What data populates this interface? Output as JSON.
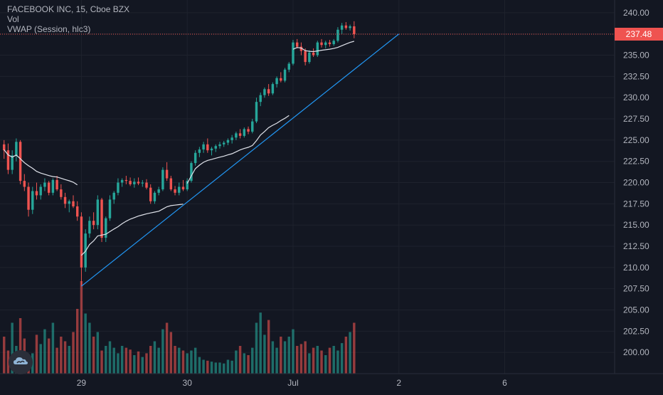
{
  "legend": {
    "symbol": "FACEBOOK INC, 15, Cboe BZX",
    "volume": "Vol",
    "vwap": "VWAP (Session, hlc3)"
  },
  "last_price_label": "237.48",
  "colors": {
    "background": "#131722",
    "up": "#26a69a",
    "down": "#ef5350",
    "vwap": "#e0e3eb",
    "trendline": "#2196f3",
    "grid": "#1e222d",
    "axis_text": "#b2b5be"
  },
  "chart_data": {
    "type": "candlestick",
    "title": "FACEBOOK INC, 15, Cboe BZX",
    "y_axis": {
      "ticks": [
        "240.00",
        "237.50",
        "235.00",
        "232.50",
        "230.00",
        "227.50",
        "225.00",
        "222.50",
        "220.00",
        "217.50",
        "215.00",
        "212.50",
        "210.00",
        "207.50",
        "205.00",
        "202.50",
        "200.00"
      ],
      "range": [
        197.5,
        241.5
      ]
    },
    "x_axis": {
      "ticks": [
        {
          "label": "29",
          "index": 19
        },
        {
          "label": "30",
          "index": 45
        },
        {
          "label": "Jul",
          "index": 71
        },
        {
          "label": "2",
          "index": 97
        },
        {
          "label": "6",
          "index": 123
        }
      ],
      "range": [
        -1,
        150
      ]
    },
    "last_price": 237.48,
    "ohlc": [
      [
        224.5,
        225.0,
        222.8,
        223.8
      ],
      [
        223.8,
        224.6,
        221.0,
        221.5
      ],
      [
        221.5,
        223.8,
        221.0,
        223.2
      ],
      [
        223.2,
        225.2,
        222.5,
        224.8
      ],
      [
        224.8,
        225.0,
        219.8,
        220.2
      ],
      [
        220.2,
        221.0,
        219.0,
        219.5
      ],
      [
        219.5,
        220.0,
        216.0,
        216.8
      ],
      [
        216.8,
        219.5,
        216.3,
        219.0
      ],
      [
        219.0,
        220.0,
        218.0,
        218.5
      ],
      [
        218.5,
        219.8,
        218.0,
        219.5
      ],
      [
        219.5,
        220.5,
        219.0,
        220.0
      ],
      [
        220.0,
        220.2,
        218.5,
        218.8
      ],
      [
        218.8,
        220.5,
        218.5,
        220.3
      ],
      [
        220.3,
        220.8,
        219.0,
        219.2
      ],
      [
        219.2,
        219.8,
        218.0,
        218.3
      ],
      [
        218.3,
        218.8,
        217.0,
        217.5
      ],
      [
        217.5,
        218.0,
        216.5,
        217.8
      ],
      [
        217.8,
        218.5,
        217.0,
        217.2
      ],
      [
        217.2,
        217.8,
        215.5,
        216.0
      ],
      [
        216.0,
        216.5,
        207.8,
        210.0
      ],
      [
        210.0,
        214.5,
        209.5,
        214.0
      ],
      [
        214.0,
        216.0,
        213.5,
        215.5
      ],
      [
        215.5,
        216.5,
        214.5,
        215.0
      ],
      [
        215.0,
        218.5,
        214.5,
        218.0
      ],
      [
        218.0,
        218.2,
        213.0,
        213.5
      ],
      [
        213.5,
        216.0,
        213.0,
        215.8
      ],
      [
        215.8,
        218.5,
        215.5,
        218.0
      ],
      [
        218.0,
        219.0,
        217.5,
        218.8
      ],
      [
        218.8,
        220.5,
        218.5,
        220.0
      ],
      [
        220.0,
        220.5,
        219.5,
        220.3
      ],
      [
        220.3,
        220.8,
        219.8,
        220.2
      ],
      [
        220.2,
        220.6,
        219.6,
        219.8
      ],
      [
        219.8,
        220.5,
        219.4,
        220.1
      ],
      [
        220.1,
        220.6,
        219.7,
        219.9
      ],
      [
        219.9,
        220.3,
        219.5,
        220.0
      ],
      [
        220.0,
        220.4,
        219.2,
        219.4
      ],
      [
        219.4,
        219.8,
        217.5,
        217.8
      ],
      [
        217.8,
        219.0,
        217.5,
        218.8
      ],
      [
        218.8,
        219.5,
        218.5,
        219.2
      ],
      [
        219.2,
        221.8,
        219.0,
        221.5
      ],
      [
        221.5,
        222.4,
        220.2,
        220.5
      ],
      [
        220.5,
        220.8,
        219.0,
        219.2
      ],
      [
        219.2,
        219.6,
        218.5,
        218.8
      ],
      [
        218.8,
        220.0,
        218.5,
        219.5
      ],
      [
        219.5,
        220.3,
        219.0,
        219.2
      ],
      [
        219.2,
        220.5,
        219.0,
        220.2
      ],
      [
        220.2,
        222.5,
        220.0,
        222.3
      ],
      [
        222.3,
        223.8,
        222.0,
        223.5
      ],
      [
        223.5,
        224.2,
        223.0,
        223.9
      ],
      [
        223.9,
        224.8,
        223.5,
        224.5
      ],
      [
        224.5,
        225.2,
        223.5,
        223.8
      ],
      [
        223.8,
        224.2,
        223.2,
        224.0
      ],
      [
        224.0,
        224.5,
        223.6,
        224.3
      ],
      [
        224.3,
        224.8,
        224.0,
        224.5
      ],
      [
        224.5,
        224.9,
        224.2,
        224.7
      ],
      [
        224.7,
        225.2,
        224.4,
        225.0
      ],
      [
        225.0,
        225.6,
        224.6,
        225.3
      ],
      [
        225.3,
        226.0,
        225.0,
        225.8
      ],
      [
        225.8,
        226.3,
        225.2,
        225.5
      ],
      [
        225.5,
        226.5,
        225.3,
        226.3
      ],
      [
        226.3,
        226.6,
        225.7,
        226.0
      ],
      [
        226.0,
        227.5,
        225.8,
        227.2
      ],
      [
        227.2,
        230.0,
        227.0,
        229.5
      ],
      [
        229.5,
        230.6,
        229.0,
        230.3
      ],
      [
        230.3,
        231.2,
        230.0,
        231.0
      ],
      [
        231.0,
        231.6,
        230.2,
        230.5
      ],
      [
        230.5,
        231.8,
        230.3,
        231.6
      ],
      [
        231.6,
        232.5,
        231.2,
        232.3
      ],
      [
        232.3,
        233.0,
        231.8,
        232.0
      ],
      [
        232.0,
        233.5,
        231.8,
        233.3
      ],
      [
        233.3,
        234.2,
        233.0,
        234.0
      ],
      [
        234.0,
        236.8,
        233.8,
        236.5
      ],
      [
        236.5,
        236.9,
        235.8,
        236.0
      ],
      [
        236.0,
        236.5,
        235.0,
        235.5
      ],
      [
        235.5,
        235.8,
        233.8,
        234.2
      ],
      [
        234.2,
        235.6,
        234.0,
        235.3
      ],
      [
        235.3,
        235.8,
        234.8,
        235.0
      ],
      [
        235.0,
        236.7,
        234.8,
        236.5
      ],
      [
        236.5,
        236.9,
        235.9,
        236.2
      ],
      [
        236.2,
        236.7,
        235.8,
        236.5
      ],
      [
        236.5,
        236.8,
        236.0,
        236.3
      ],
      [
        236.3,
        236.9,
        236.1,
        236.7
      ],
      [
        236.7,
        238.3,
        236.5,
        238.0
      ],
      [
        238.0,
        238.8,
        237.5,
        238.5
      ],
      [
        238.5,
        238.9,
        238.0,
        238.2
      ],
      [
        238.2,
        238.6,
        237.9,
        238.4
      ],
      [
        238.4,
        239.0,
        237.0,
        237.48
      ]
    ],
    "volume": [
      0.4,
      0.25,
      0.55,
      0.3,
      0.6,
      0.38,
      0.18,
      0.22,
      0.42,
      0.32,
      0.48,
      0.38,
      0.55,
      0.28,
      0.4,
      0.35,
      0.3,
      0.45,
      0.7,
      1.0,
      0.65,
      0.55,
      0.4,
      0.45,
      0.25,
      0.3,
      0.35,
      0.28,
      0.22,
      0.3,
      0.28,
      0.26,
      0.2,
      0.24,
      0.18,
      0.22,
      0.3,
      0.35,
      0.28,
      0.48,
      0.55,
      0.45,
      0.3,
      0.28,
      0.25,
      0.22,
      0.25,
      0.28,
      0.18,
      0.15,
      0.14,
      0.13,
      0.12,
      0.12,
      0.11,
      0.15,
      0.14,
      0.25,
      0.3,
      0.22,
      0.2,
      0.28,
      0.55,
      0.66,
      0.42,
      0.58,
      0.35,
      0.28,
      0.4,
      0.35,
      0.4,
      0.48,
      0.3,
      0.32,
      0.35,
      0.22,
      0.28,
      0.3,
      0.25,
      0.2,
      0.28,
      0.3,
      0.25,
      0.33,
      0.4,
      0.45,
      0.55
    ]
  }
}
